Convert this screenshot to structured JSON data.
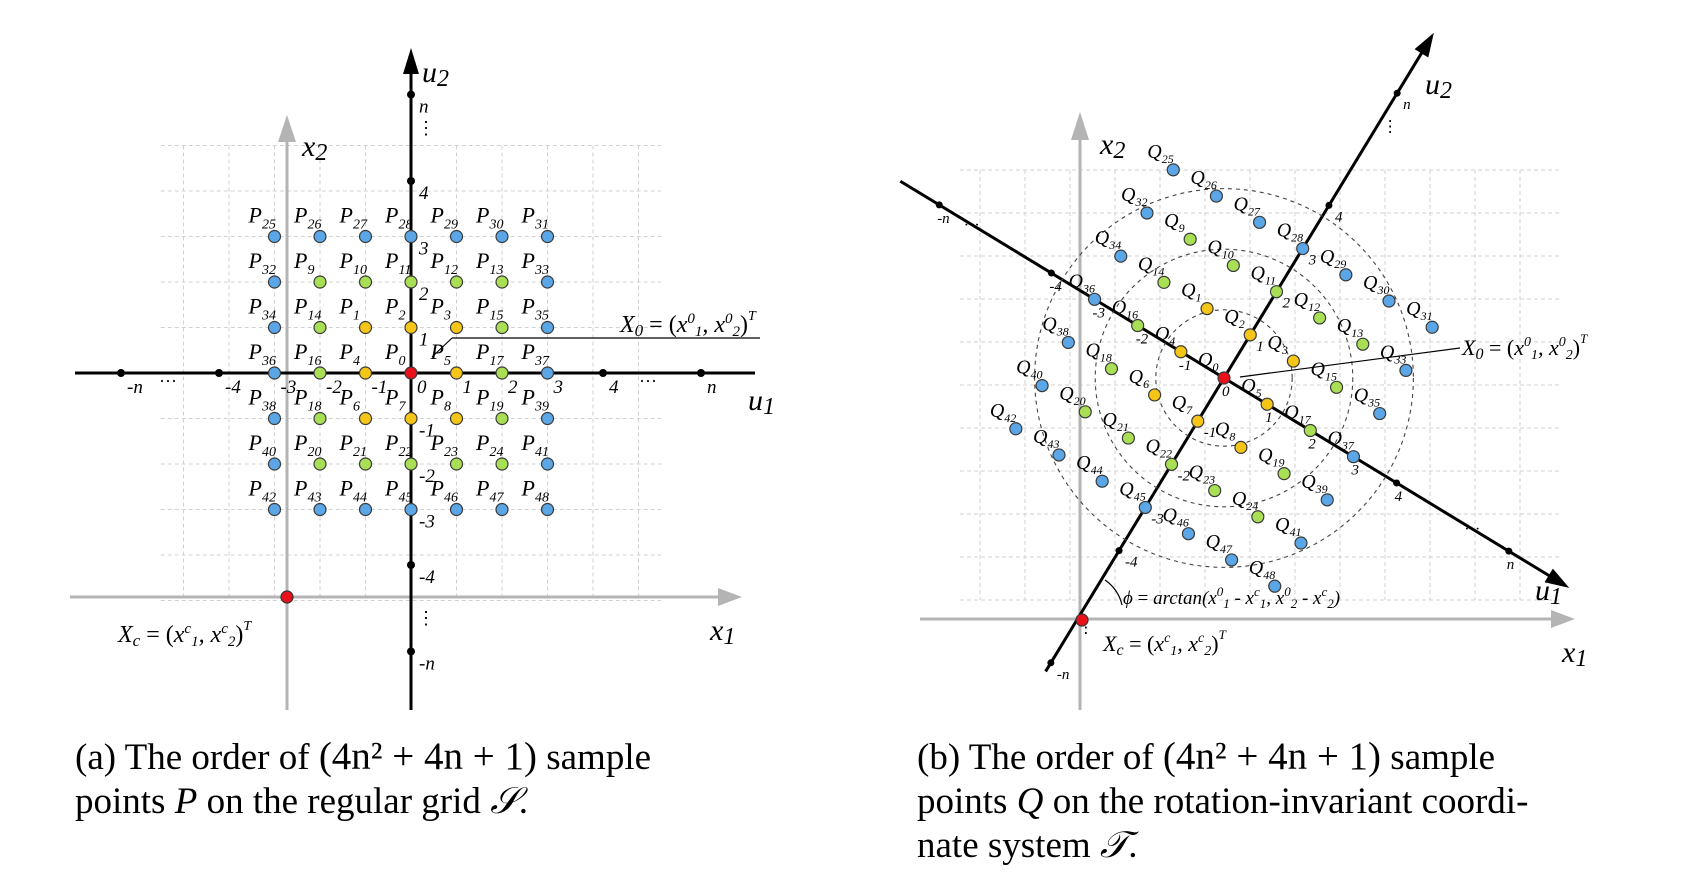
{
  "panel_a": {
    "caption_prefix": "(a) The order of",
    "caption_formula": "(4n² + 4n + 1)",
    "caption_line1_end": "sample",
    "caption_line2_a": "points",
    "caption_var": "P",
    "caption_line2_b": "on the regular grid",
    "caption_set": "𝒮",
    "caption_end": ".",
    "axis_x1": "x1",
    "axis_x2": "x2",
    "axis_u1": "u1",
    "axis_u2": "u2",
    "xc_label": "Xc = (x1c, x2c)T",
    "x0_label": "X0 = (x10, x20)T",
    "u1_ticks": [
      "-n",
      "···",
      "-4",
      "-3",
      "-2",
      "-1",
      "0",
      "1",
      "2",
      "3",
      "4",
      "···",
      "n"
    ],
    "u2_ticks": [
      "n",
      "⋮",
      "4",
      "3",
      "2",
      "1",
      "-1",
      "-2",
      "-3",
      "-4",
      "⋮",
      "-n"
    ],
    "points": [
      "P0",
      "P1",
      "P2",
      "P3",
      "P4",
      "P5",
      "P6",
      "P7",
      "P8",
      "P9",
      "P10",
      "P11",
      "P12",
      "P13",
      "P14",
      "P15",
      "P16",
      "P17",
      "P18",
      "P19",
      "P20",
      "P21",
      "P22",
      "P23",
      "P24",
      "P25",
      "P26",
      "P27",
      "P28",
      "P29",
      "P30",
      "P31",
      "P32",
      "P33",
      "P34",
      "P35",
      "P36",
      "P37",
      "P38",
      "P39",
      "P40",
      "P41",
      "P42",
      "P43",
      "P44",
      "P45",
      "P46",
      "P47",
      "P48"
    ]
  },
  "panel_b": {
    "caption_prefix": "(b) The order of",
    "caption_formula": "(4n² + 4n + 1)",
    "caption_line1_end": "sample",
    "caption_line2_a": "points",
    "caption_var": "Q",
    "caption_line2_b": "on the rotation-invariant coordi-",
    "caption_line3": "nate system",
    "caption_set": "𝒯",
    "caption_end": ".",
    "axis_x1": "x1",
    "axis_x2": "x2",
    "axis_u1": "u1",
    "axis_u2": "u2",
    "xc_label": "Xc = (x1c, x2c)T",
    "x0_label": "X0 = (x10, x20)T",
    "phi_label": "ϕ = arctan(x10 - x1c, x20 - x2c)",
    "u1_ticks": [
      "-n",
      "···",
      "-4",
      "-3",
      "-2",
      "-1",
      "0",
      "1",
      "2",
      "3",
      "4",
      "···",
      "n"
    ],
    "u2_ticks": [
      "n",
      "⋮",
      "4",
      "3",
      "2",
      "1",
      "-1",
      "-2",
      "-3",
      "-4",
      "⋮",
      "-n"
    ],
    "points": [
      "Q0",
      "Q1",
      "Q2",
      "Q3",
      "Q4",
      "Q5",
      "Q6",
      "Q7",
      "Q8",
      "Q9",
      "Q10",
      "Q11",
      "Q12",
      "Q13",
      "Q14",
      "Q15",
      "Q16",
      "Q17",
      "Q18",
      "Q19",
      "Q20",
      "Q21",
      "Q22",
      "Q23",
      "Q24",
      "Q25",
      "Q26",
      "Q27",
      "Q28",
      "Q29",
      "Q30",
      "Q31",
      "Q32",
      "Q33",
      "Q34",
      "Q35",
      "Q36",
      "Q37",
      "Q38",
      "Q39",
      "Q40",
      "Q41",
      "Q42",
      "Q43",
      "Q44",
      "Q45",
      "Q46",
      "Q47",
      "Q48"
    ]
  },
  "colors": {
    "origin": "#e8101a",
    "ring1": "#f5c518",
    "ring2": "#a8df55",
    "ring3": "#5aa6e6",
    "background_axis": "#b4b4b4",
    "grid": "#d2d2d2"
  }
}
